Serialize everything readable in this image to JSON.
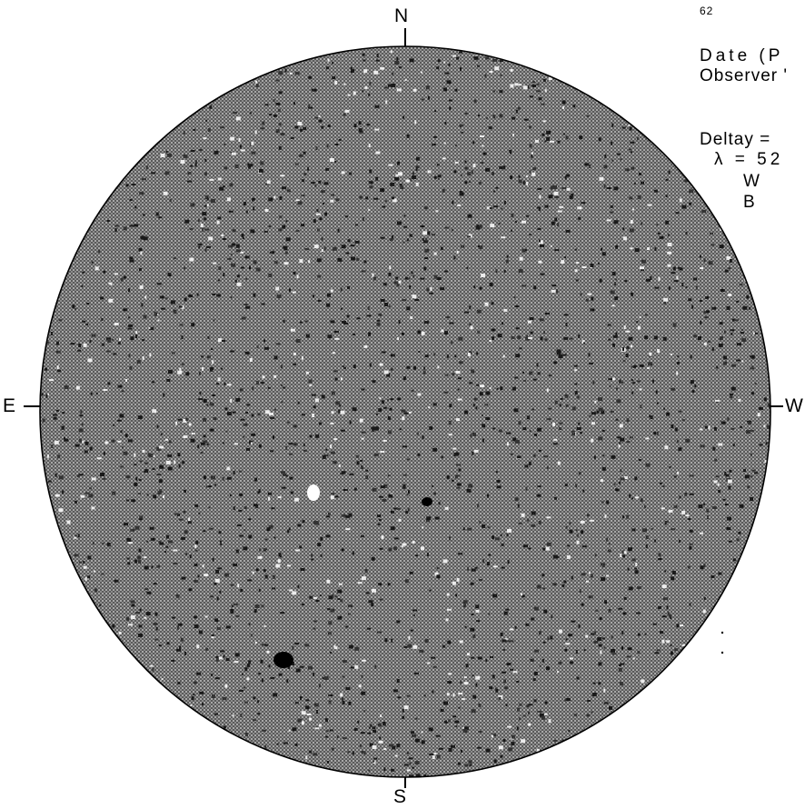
{
  "plate": {
    "number": "62"
  },
  "compass": {
    "north": "N",
    "south": "S",
    "east": "E",
    "west": "W"
  },
  "notes": {
    "date_line": "Date (P",
    "observer_line": "Observer '",
    "deltay_line": "Deltay =",
    "lambda_line": "λ = 52",
    "w_line": "W",
    "b_line": "B"
  },
  "colors": {
    "disk_background": "#7a7a7a",
    "disk_outline": "#000000",
    "page_background": "#ffffff"
  }
}
